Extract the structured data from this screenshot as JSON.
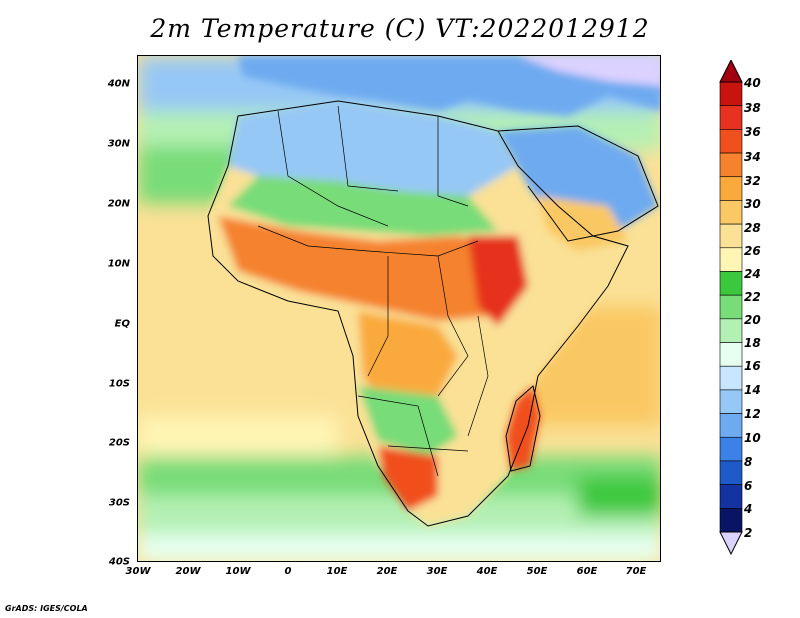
{
  "title": "2m Temperature (C) VT:2022012912",
  "credit": "GrADS: IGES/COLA",
  "map": {
    "type": "filled-contour-map",
    "region": "Africa",
    "lon_range": [
      -30,
      75
    ],
    "lat_range": [
      -40,
      45
    ],
    "lat_ticks": [
      "40N",
      "30N",
      "20N",
      "10N",
      "EQ",
      "10S",
      "20S",
      "30S",
      "40S"
    ],
    "lon_ticks": [
      "30W",
      "20W",
      "10W",
      "0",
      "10E",
      "20E",
      "30E",
      "40E",
      "50E",
      "60E",
      "70E"
    ]
  },
  "colorbar": {
    "labels": [
      "40",
      "38",
      "36",
      "34",
      "32",
      "30",
      "28",
      "26",
      "24",
      "22",
      "20",
      "18",
      "16",
      "14",
      "12",
      "10",
      "8",
      "6",
      "4",
      "2"
    ],
    "colors": [
      "#a0000f",
      "#c8140f",
      "#e6321e",
      "#f0501e",
      "#f5822d",
      "#faaa3c",
      "#fac864",
      "#fae196",
      "#fff5b4",
      "#3cc83c",
      "#78dc78",
      "#b4f0b4",
      "#e6fff0",
      "#c8e6ff",
      "#96c8f5",
      "#6eaaf0",
      "#3c82e6",
      "#1e5ac8",
      "#1432a0",
      "#0a1464",
      "#dcd2ff"
    ]
  }
}
